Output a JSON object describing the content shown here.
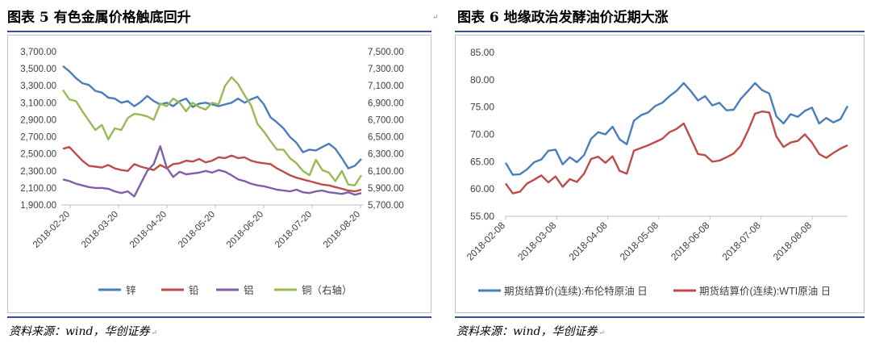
{
  "left": {
    "title": "图表 5   有色金属价格触底回升",
    "source": "资料来源：wind，华创证券",
    "chart_data": {
      "type": "line",
      "title": "有色金属价格触底回升",
      "left_ticks": [
        "3,700.00",
        "3,500.00",
        "3,300.00",
        "3,100.00",
        "2,900.00",
        "2,700.00",
        "2,500.00",
        "2,300.00",
        "2,100.00",
        "1,900.00"
      ],
      "right_ticks": [
        "7,500.00",
        "7,300.00",
        "7,100.00",
        "6,900.00",
        "6,700.00",
        "6,500.00",
        "6,300.00",
        "6,100.00",
        "5,900.00",
        "5,700.00"
      ],
      "ylim_left": [
        1900,
        3700
      ],
      "ylim_right": [
        5700,
        7500
      ],
      "x_ticks": [
        "2018-02-20",
        "2018-03-20",
        "2018-04-20",
        "2018-05-20",
        "2018-06-20",
        "2018-07-20",
        "2018-08-20"
      ],
      "series": [
        {
          "name": "锌",
          "axis": "left",
          "color": "#4a7ebb",
          "values": [
            3530,
            3470,
            3390,
            3330,
            3310,
            3240,
            3220,
            3160,
            3150,
            3100,
            3120,
            3060,
            3110,
            3180,
            3120,
            3080,
            3100,
            3060,
            3120,
            3150,
            3050,
            3090,
            3100,
            3080,
            3060,
            3080,
            3100,
            3150,
            3100,
            3140,
            3170,
            3080,
            2930,
            2870,
            2800,
            2700,
            2630,
            2520,
            2550,
            2540,
            2580,
            2620,
            2560,
            2450,
            2330,
            2360,
            2440
          ]
        },
        {
          "name": "铅",
          "axis": "left",
          "color": "#be4b48",
          "values": [
            2560,
            2580,
            2500,
            2420,
            2360,
            2350,
            2340,
            2370,
            2330,
            2310,
            2300,
            2380,
            2350,
            2330,
            2310,
            2370,
            2330,
            2380,
            2390,
            2420,
            2410,
            2440,
            2400,
            2420,
            2460,
            2450,
            2480,
            2450,
            2460,
            2420,
            2400,
            2390,
            2380,
            2330,
            2290,
            2250,
            2220,
            2200,
            2180,
            2160,
            2140,
            2130,
            2110,
            2090,
            2070,
            2060,
            2080
          ]
        },
        {
          "name": "铝",
          "axis": "left",
          "color": "#7f5fa8",
          "values": [
            2200,
            2180,
            2150,
            2130,
            2110,
            2100,
            2100,
            2090,
            2060,
            2040,
            2060,
            2000,
            2150,
            2300,
            2380,
            2590,
            2340,
            2230,
            2290,
            2260,
            2270,
            2280,
            2300,
            2280,
            2310,
            2290,
            2250,
            2200,
            2180,
            2150,
            2130,
            2120,
            2100,
            2080,
            2070,
            2060,
            2080,
            2050,
            2040,
            2060,
            2070,
            2050,
            2040,
            2030,
            2050,
            2020,
            2040
          ]
        },
        {
          "name": "铜（右轴）",
          "axis": "right",
          "color": "#98b954",
          "values": [
            7050,
            6940,
            6920,
            6800,
            6690,
            6580,
            6640,
            6470,
            6600,
            6580,
            6720,
            6770,
            6760,
            6740,
            6700,
            6890,
            6860,
            6950,
            6900,
            6800,
            6900,
            6850,
            6820,
            6900,
            6880,
            7100,
            7200,
            7120,
            6990,
            6870,
            6650,
            6560,
            6450,
            6350,
            6350,
            6250,
            6190,
            6100,
            6050,
            6230,
            6110,
            6080,
            5980,
            6100,
            5940,
            5930,
            6050
          ]
        }
      ],
      "legend_position": "bottom"
    }
  },
  "right": {
    "title": "图表 6   地缘政治发酵油价近期大涨",
    "source": "资料来源：wind，华创证券",
    "chart_data": {
      "type": "line",
      "title": "地缘政治发酵油价近期大涨",
      "y_ticks": [
        "85.00",
        "80.00",
        "75.00",
        "70.00",
        "65.00",
        "60.00",
        "55.00"
      ],
      "ylim": [
        55,
        85
      ],
      "x_ticks": [
        "2018-02-08",
        "2018-03-08",
        "2018-04-08",
        "2018-05-08",
        "2018-06-08",
        "2018-07-08",
        "2018-08-08"
      ],
      "series": [
        {
          "name": "期货结算价(连续):布伦特原油 日",
          "color": "#4a7ebb",
          "values": [
            64.8,
            62.6,
            62.7,
            63.6,
            64.9,
            65.4,
            67.0,
            67.2,
            64.5,
            65.8,
            64.9,
            66.2,
            69.2,
            70.4,
            70.0,
            71.4,
            69.1,
            68.2,
            72.5,
            73.5,
            74.0,
            75.2,
            75.8,
            77.0,
            78.0,
            79.4,
            77.9,
            76.2,
            77.0,
            75.3,
            75.8,
            74.4,
            74.5,
            76.5,
            77.9,
            79.4,
            78.1,
            77.5,
            73.3,
            72.0,
            73.7,
            73.2,
            74.3,
            74.9,
            72.0,
            73.0,
            72.2,
            72.8,
            75.2
          ]
        },
        {
          "name": "期货结算价(连续):WTI原油 日",
          "color": "#be4b48",
          "values": [
            61.0,
            59.2,
            59.5,
            61.0,
            61.7,
            62.5,
            61.2,
            62.3,
            60.4,
            61.8,
            61.3,
            62.8,
            65.5,
            65.9,
            64.8,
            66.0,
            63.3,
            62.8,
            67.0,
            67.5,
            68.0,
            68.6,
            69.2,
            70.4,
            71.0,
            72.0,
            69.2,
            66.4,
            66.2,
            65.0,
            65.2,
            65.8,
            66.5,
            67.9,
            70.6,
            73.8,
            74.2,
            74.0,
            69.6,
            67.7,
            68.5,
            68.8,
            70.0,
            68.5,
            66.4,
            65.7,
            66.6,
            67.4,
            68.0
          ]
        }
      ],
      "legend_position": "bottom"
    }
  }
}
